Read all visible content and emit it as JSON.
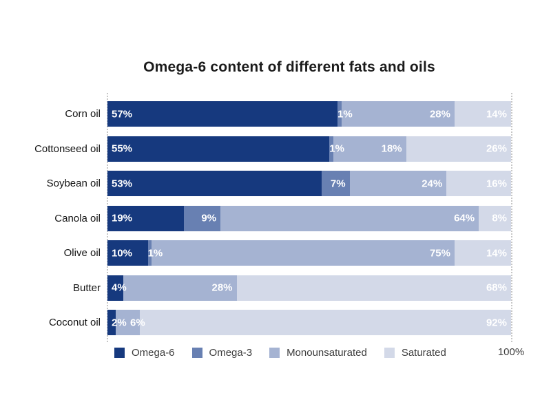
{
  "title": "Omega-6 content of different fats and oils",
  "chart_data": {
    "type": "bar",
    "orientation": "horizontal",
    "stacked": true,
    "title": "Omega-6 content of different fats and oils",
    "value_suffix": "%",
    "xlim": [
      0,
      100
    ],
    "axis_max_label": "100%",
    "legend_position": "bottom",
    "gridlines": [
      "0%",
      "100%"
    ],
    "categories": [
      "Corn oil",
      "Cottonseed oil",
      "Soybean oil",
      "Canola oil",
      "Olive oil",
      "Butter",
      "Coconut oil"
    ],
    "series": [
      {
        "name": "Omega-6",
        "color": "#16397e",
        "values": [
          57,
          55,
          53,
          19,
          10,
          4,
          2
        ]
      },
      {
        "name": "Omega-3",
        "color": "#6880b2",
        "values": [
          1,
          1,
          7,
          9,
          1,
          0,
          0
        ]
      },
      {
        "name": "Monounsaturated",
        "color": "#a5b3d2",
        "values": [
          28,
          18,
          24,
          64,
          75,
          28,
          6
        ]
      },
      {
        "name": "Saturated",
        "color": "#d3d9e8",
        "values": [
          14,
          26,
          16,
          8,
          14,
          68,
          92
        ]
      }
    ]
  },
  "colors": {
    "title_text": "#1b1b1b",
    "category_text": "#141414",
    "value_text": "#ffffff",
    "legend_text": "#3d3d3d",
    "gridline": "#c6c6c6",
    "background": "#ffffff"
  }
}
